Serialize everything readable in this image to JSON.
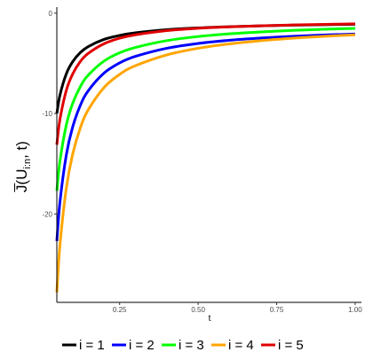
{
  "chart_data": {
    "type": "line",
    "xlabel": "t",
    "ylabel": "J̅(U",
    "ylabel_sub": "i:n",
    "ylabel_tail": ", t)",
    "xlim": [
      0.05,
      1.02
    ],
    "ylim": [
      -28.8,
      0.6
    ],
    "x_ticks": [
      0.25,
      0.5,
      0.75,
      1.0
    ],
    "x_tick_labels": [
      "0.25",
      "0.50",
      "0.75",
      "1.00"
    ],
    "y_ticks": [
      0,
      -10,
      -20
    ],
    "y_tick_labels": [
      "0",
      "-10",
      "-20"
    ],
    "grid": false,
    "legend_position": "bottom",
    "series": [
      {
        "name": "i = 1",
        "color": "#000000",
        "x": [
          0.05,
          0.06,
          0.08,
          0.1,
          0.125,
          0.15,
          0.2,
          0.25,
          0.3,
          0.4,
          0.5,
          0.6,
          0.7,
          0.8,
          0.9,
          1.0
        ],
        "y": [
          -10.0,
          -8.15,
          -6.06,
          -4.86,
          -3.92,
          -3.33,
          -2.62,
          -2.22,
          -1.96,
          -1.65,
          -1.47,
          -1.35,
          -1.26,
          -1.2,
          -1.15,
          -1.11
        ]
      },
      {
        "name": "i = 2",
        "color": "#0000ff",
        "x": [
          0.05,
          0.06,
          0.08,
          0.1,
          0.125,
          0.15,
          0.2,
          0.25,
          0.3,
          0.4,
          0.5,
          0.6,
          0.7,
          0.8,
          0.9,
          1.0
        ],
        "y": [
          -22.7,
          -18.78,
          -14.15,
          -11.38,
          -9.17,
          -7.73,
          -5.98,
          -4.96,
          -4.31,
          -3.5,
          -3.02,
          -2.7,
          -2.48,
          -2.31,
          -2.18,
          -2.08
        ]
      },
      {
        "name": "i = 3",
        "color": "#00ff00",
        "x": [
          0.05,
          0.06,
          0.08,
          0.1,
          0.125,
          0.15,
          0.2,
          0.25,
          0.3,
          0.4,
          0.5,
          0.6,
          0.7,
          0.8,
          0.9,
          1.0
        ],
        "y": [
          -17.7,
          -14.71,
          -11.16,
          -9.02,
          -7.31,
          -6.18,
          -4.78,
          -3.95,
          -3.42,
          -2.74,
          -2.33,
          -2.06,
          -1.87,
          -1.72,
          -1.61,
          -1.52
        ]
      },
      {
        "name": "i = 4",
        "color": "#ffa500",
        "x": [
          0.05,
          0.06,
          0.08,
          0.1,
          0.125,
          0.15,
          0.2,
          0.25,
          0.3,
          0.4,
          0.5,
          0.6,
          0.7,
          0.8,
          0.9,
          1.0
        ],
        "y": [
          -27.8,
          -23.07,
          -17.47,
          -14.1,
          -11.41,
          -9.63,
          -7.42,
          -6.1,
          -5.24,
          -4.16,
          -3.5,
          -3.06,
          -2.74,
          -2.5,
          -2.31,
          -2.16
        ]
      },
      {
        "name": "i = 5",
        "color": "#e00000",
        "x": [
          0.05,
          0.06,
          0.08,
          0.1,
          0.125,
          0.15,
          0.2,
          0.25,
          0.3,
          0.4,
          0.5,
          0.6,
          0.7,
          0.8,
          0.9,
          1.0
        ],
        "y": [
          -13.1,
          -10.56,
          -7.71,
          -6.09,
          -4.81,
          -4.01,
          -3.05,
          -2.5,
          -2.16,
          -1.74,
          -1.51,
          -1.36,
          -1.26,
          -1.18,
          -1.12,
          -1.07
        ]
      }
    ]
  }
}
